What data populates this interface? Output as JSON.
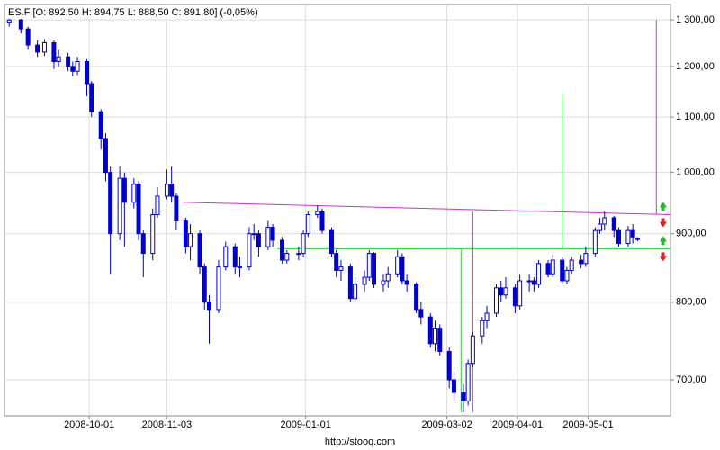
{
  "chart_data": {
    "type": "candlestick",
    "title": "ES.F [O: 892,50  H: 894,75  L: 888,50  C: 891,80] (-0,05%)",
    "footer": "http://stooq.com",
    "color": "#0000cc",
    "log_scale": true,
    "grid": true,
    "xlim": [
      "2008-08-26",
      "2009-06-05"
    ],
    "xticks": [
      "2008-10-01",
      "2008-11-03",
      "2009-01-01",
      "2009-03-02",
      "2009-04-01",
      "2009-05-01"
    ],
    "ylim": [
      658,
      1335
    ],
    "yticks": [
      {
        "value": 700,
        "label": "700,00"
      },
      {
        "value": 800,
        "label": "800,00"
      },
      {
        "value": 900,
        "label": "900,00"
      },
      {
        "value": 1000,
        "label": "1 000,00"
      },
      {
        "value": 1100,
        "label": "1 100,00"
      },
      {
        "value": 1200,
        "label": "1 200,00"
      },
      {
        "value": 1300,
        "label": "1 300,00"
      }
    ],
    "x": [
      "2008-08-28",
      "2008-09-02",
      "2008-09-05",
      "2008-09-09",
      "2008-09-12",
      "2008-09-16",
      "2008-09-18",
      "2008-09-22",
      "2008-09-24",
      "2008-09-26",
      "2008-09-30",
      "2008-10-02",
      "2008-10-06",
      "2008-10-08",
      "2008-10-10",
      "2008-10-14",
      "2008-10-16",
      "2008-10-20",
      "2008-10-22",
      "2008-10-24",
      "2008-10-28",
      "2008-10-30",
      "2008-11-03",
      "2008-11-05",
      "2008-11-07",
      "2008-11-11",
      "2008-11-13",
      "2008-11-17",
      "2008-11-19",
      "2008-11-21",
      "2008-11-25",
      "2008-11-28",
      "2008-12-02",
      "2008-12-04",
      "2008-12-08",
      "2008-12-10",
      "2008-12-12",
      "2008-12-16",
      "2008-12-18",
      "2008-12-22",
      "2008-12-24",
      "2008-12-29",
      "2008-12-31",
      "2009-01-02",
      "2009-01-06",
      "2009-01-08",
      "2009-01-12",
      "2009-01-14",
      "2009-01-16",
      "2009-01-20",
      "2009-01-22",
      "2009-01-26",
      "2009-01-28",
      "2009-01-30",
      "2009-02-03",
      "2009-02-05",
      "2009-02-09",
      "2009-02-11",
      "2009-02-13",
      "2009-02-17",
      "2009-02-19",
      "2009-02-23",
      "2009-02-25",
      "2009-02-27",
      "2009-03-03",
      "2009-03-05",
      "2009-03-09",
      "2009-03-11",
      "2009-03-13",
      "2009-03-17",
      "2009-03-19",
      "2009-03-23",
      "2009-03-25",
      "2009-03-27",
      "2009-03-31",
      "2009-04-02",
      "2009-04-06",
      "2009-04-08",
      "2009-04-10",
      "2009-04-14",
      "2009-04-16",
      "2009-04-20",
      "2009-04-22",
      "2009-04-24",
      "2009-04-28",
      "2009-04-30",
      "2009-05-04",
      "2009-05-06",
      "2009-05-08",
      "2009-05-12",
      "2009-05-14",
      "2009-05-18",
      "2009-05-20",
      "2009-05-22"
    ],
    "open": [
      1295,
      1300,
      1280,
      1245,
      1230,
      1250,
      1210,
      1220,
      1200,
      1190,
      1210,
      1165,
      1110,
      1060,
      1000,
      900,
      990,
      950,
      980,
      900,
      870,
      930,
      960,
      980,
      960,
      920,
      880,
      900,
      850,
      800,
      790,
      850,
      880,
      850,
      850,
      900,
      900,
      880,
      910,
      890,
      860,
      870,
      870,
      900,
      930,
      935,
      905,
      870,
      845,
      850,
      805,
      825,
      835,
      870,
      825,
      830,
      840,
      865,
      830,
      825,
      790,
      780,
      745,
      765,
      735,
      700,
      685,
      675,
      720,
      755,
      775,
      785,
      820,
      810,
      820,
      795,
      830,
      830,
      825,
      855,
      840,
      860,
      830,
      845,
      860,
      855,
      870,
      905,
      915,
      925,
      905,
      885,
      905,
      892.5
    ],
    "high": [
      1305,
      1303,
      1285,
      1255,
      1258,
      1255,
      1235,
      1228,
      1210,
      1220,
      1215,
      1170,
      1115,
      1070,
      1010,
      1010,
      1000,
      990,
      985,
      905,
      940,
      975,
      1005,
      1010,
      965,
      925,
      915,
      905,
      855,
      810,
      860,
      888,
      885,
      865,
      910,
      915,
      905,
      920,
      915,
      895,
      875,
      880,
      905,
      935,
      945,
      940,
      910,
      875,
      860,
      855,
      835,
      845,
      875,
      872,
      840,
      850,
      875,
      870,
      840,
      828,
      800,
      785,
      775,
      770,
      740,
      710,
      695,
      725,
      760,
      780,
      795,
      825,
      830,
      835,
      825,
      840,
      840,
      835,
      860,
      860,
      868,
      865,
      850,
      865,
      868,
      880,
      910,
      925,
      935,
      928,
      910,
      912,
      915,
      894.75
    ],
    "low": [
      1285,
      1270,
      1235,
      1220,
      1222,
      1195,
      1200,
      1190,
      1180,
      1182,
      1140,
      1100,
      1040,
      985,
      840,
      890,
      880,
      940,
      890,
      835,
      860,
      925,
      955,
      950,
      905,
      870,
      860,
      840,
      790,
      745,
      785,
      845,
      840,
      835,
      845,
      890,
      865,
      875,
      880,
      855,
      855,
      860,
      865,
      895,
      925,
      900,
      865,
      835,
      830,
      800,
      800,
      815,
      830,
      820,
      815,
      820,
      835,
      825,
      815,
      785,
      770,
      740,
      735,
      730,
      690,
      675,
      662,
      670,
      715,
      745,
      765,
      780,
      800,
      805,
      785,
      790,
      815,
      815,
      820,
      835,
      835,
      825,
      825,
      840,
      848,
      850,
      865,
      900,
      905,
      895,
      880,
      880,
      885,
      888.5
    ],
    "close": [
      1300,
      1280,
      1245,
      1230,
      1250,
      1210,
      1220,
      1200,
      1190,
      1210,
      1165,
      1110,
      1060,
      1000,
      900,
      990,
      950,
      980,
      900,
      870,
      930,
      960,
      980,
      960,
      920,
      880,
      900,
      850,
      800,
      790,
      850,
      880,
      850,
      850,
      900,
      900,
      880,
      910,
      890,
      860,
      870,
      870,
      900,
      930,
      935,
      905,
      870,
      845,
      850,
      805,
      825,
      835,
      870,
      825,
      830,
      840,
      865,
      830,
      825,
      790,
      780,
      745,
      765,
      735,
      700,
      685,
      675,
      720,
      755,
      775,
      785,
      820,
      810,
      820,
      795,
      830,
      830,
      825,
      855,
      840,
      860,
      830,
      845,
      860,
      855,
      870,
      905,
      915,
      925,
      905,
      885,
      905,
      895,
      891.8
    ],
    "lines": [
      {
        "color": "#cc33cc",
        "points": [
          [
            "2008-11-10",
            950
          ],
          [
            "2009-06-05",
            930
          ]
        ]
      },
      {
        "color": "#33cc33",
        "points": [
          [
            "2008-12-20",
            877
          ],
          [
            "2009-06-05",
            877
          ]
        ]
      },
      {
        "color": "#33cc33",
        "points": [
          [
            "2009-03-08",
            662
          ],
          [
            "2009-03-08",
            877
          ]
        ]
      },
      {
        "color": "#cc33cc",
        "points": [
          [
            "2009-03-13",
            662
          ],
          [
            "2009-03-13",
            935
          ]
        ]
      },
      {
        "color": "#33cc33",
        "points": [
          [
            "2009-04-20",
            877
          ],
          [
            "2009-04-20",
            1145
          ]
        ]
      },
      {
        "color": "#cc33cc",
        "points": [
          [
            "2009-05-30",
            930
          ],
          [
            "2009-05-30",
            1300
          ]
        ]
      }
    ]
  }
}
